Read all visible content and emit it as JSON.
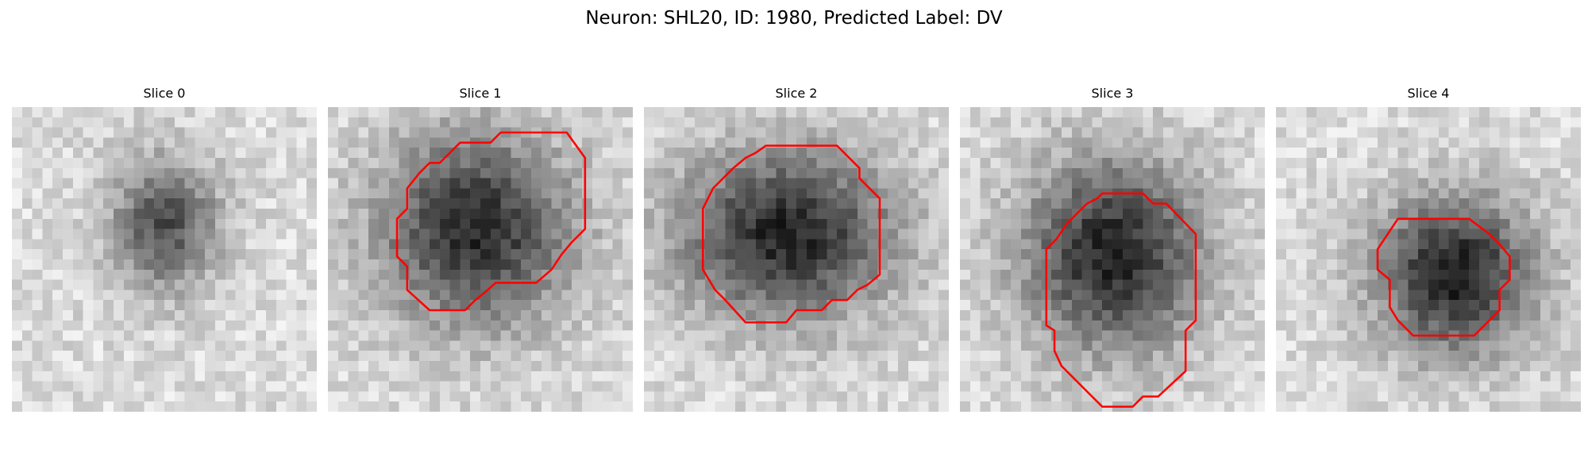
{
  "figure": {
    "title": "Neuron: SHL20, ID: 1980, Predicted Label: DV"
  },
  "contour_color": "#ff0000",
  "panels": [
    {
      "title": "Slice 0",
      "blob": {
        "cx": 15,
        "cy": 11.5,
        "rx": 4.5,
        "ry": 5.5,
        "depth": 0.55
      },
      "contour": []
    },
    {
      "title": "Slice 1",
      "blob": {
        "cx": 14.5,
        "cy": 12,
        "rx": 8,
        "ry": 8,
        "depth": 0.7
      },
      "contour": [
        [
          17,
          2.5
        ],
        [
          23.5,
          2.5
        ],
        [
          25.3,
          5
        ],
        [
          25.3,
          12
        ],
        [
          24,
          13.3
        ],
        [
          23,
          14.5
        ],
        [
          22,
          16
        ],
        [
          20.5,
          17.3
        ],
        [
          16.5,
          17.3
        ],
        [
          15.5,
          18.2
        ],
        [
          14.5,
          19
        ],
        [
          13.5,
          20
        ],
        [
          10,
          20
        ],
        [
          7.8,
          18
        ],
        [
          7.8,
          15.7
        ],
        [
          6.8,
          14.7
        ],
        [
          6.8,
          11
        ],
        [
          7.8,
          10
        ],
        [
          7.8,
          8
        ],
        [
          9,
          6.5
        ],
        [
          10,
          5.5
        ],
        [
          11,
          5.5
        ],
        [
          12,
          4.5
        ],
        [
          13,
          3.5
        ],
        [
          16,
          3.5
        ]
      ]
    },
    {
      "title": "Slice 2",
      "blob": {
        "cx": 14,
        "cy": 12.5,
        "rx": 9,
        "ry": 7,
        "depth": 0.72
      },
      "contour": [
        [
          12,
          3.8
        ],
        [
          19,
          3.8
        ],
        [
          21.2,
          6
        ],
        [
          21.2,
          7
        ],
        [
          23.2,
          9
        ],
        [
          23.2,
          16.5
        ],
        [
          22,
          17.5
        ],
        [
          21,
          18
        ],
        [
          20,
          19
        ],
        [
          18.5,
          19
        ],
        [
          17.5,
          20
        ],
        [
          15,
          20
        ],
        [
          14,
          21.2
        ],
        [
          10,
          21.2
        ],
        [
          8,
          19
        ],
        [
          7,
          18
        ],
        [
          5.8,
          16
        ],
        [
          5.8,
          10
        ],
        [
          6.8,
          8
        ],
        [
          8.8,
          6
        ],
        [
          10,
          5
        ],
        [
          11,
          4.5
        ]
      ]
    },
    {
      "title": "Slice 3",
      "blob": {
        "cx": 15,
        "cy": 14.5,
        "rx": 7.5,
        "ry": 8,
        "depth": 0.72
      },
      "contour": [
        [
          14,
          8.5
        ],
        [
          18,
          8.5
        ],
        [
          19,
          9.5
        ],
        [
          20.3,
          9.5
        ],
        [
          23.2,
          12.5
        ],
        [
          23.2,
          21
        ],
        [
          22.2,
          22
        ],
        [
          22.2,
          26
        ],
        [
          19.5,
          28.5
        ],
        [
          18,
          28.5
        ],
        [
          17,
          29.5
        ],
        [
          14,
          29.5
        ],
        [
          10,
          25.5
        ],
        [
          9.3,
          24
        ],
        [
          9.3,
          22
        ],
        [
          8.5,
          21.5
        ],
        [
          8.5,
          14
        ],
        [
          9.5,
          13
        ],
        [
          10.5,
          11.5
        ],
        [
          11.5,
          10.5
        ],
        [
          12.5,
          9.5
        ],
        [
          13.5,
          9
        ]
      ]
    },
    {
      "title": "Slice 4",
      "blob": {
        "cx": 17.5,
        "cy": 16.5,
        "rx": 6.5,
        "ry": 6.5,
        "depth": 0.75
      },
      "contour": [
        [
          12,
          11
        ],
        [
          19,
          11
        ],
        [
          21,
          12.5
        ],
        [
          22,
          13.5
        ],
        [
          23,
          14.7
        ],
        [
          23,
          17
        ],
        [
          22,
          18
        ],
        [
          22,
          20
        ],
        [
          20.5,
          21.5
        ],
        [
          20,
          22
        ],
        [
          19.5,
          22.5
        ],
        [
          13.5,
          22.5
        ],
        [
          12,
          21
        ],
        [
          11.2,
          19.7
        ],
        [
          11.2,
          17
        ],
        [
          10,
          16
        ],
        [
          10,
          14
        ],
        [
          11,
          12.5
        ]
      ]
    }
  ]
}
